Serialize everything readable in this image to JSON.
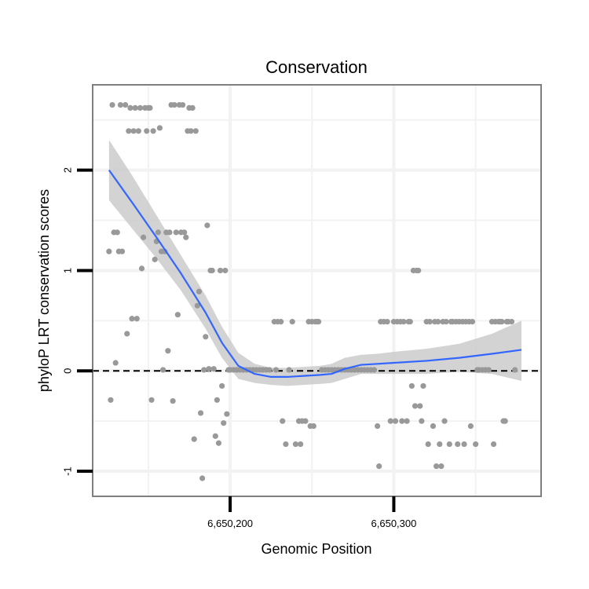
{
  "chart_data": {
    "type": "scatter",
    "title": "Conservation",
    "xlabel": "Genomic Position",
    "ylabel": "phyloP LRT conservation scores",
    "xlim": [
      6650116,
      6650390
    ],
    "ylim": [
      -1.25,
      2.85
    ],
    "x_ticks": [
      6650200,
      6650300
    ],
    "x_tick_labels": [
      "6,650,200",
      "6,650,300"
    ],
    "y_ticks": [
      -1,
      0,
      1,
      2
    ],
    "y_tick_labels": [
      "-1",
      "0",
      "1",
      "2"
    ],
    "x_minor_grid": [
      6650150,
      6650250,
      6650350
    ],
    "y_minor_grid": [
      -0.5,
      0.5,
      1.5,
      2.5
    ],
    "reference_line": {
      "y": 0,
      "style": "dashed"
    },
    "colors": {
      "points": "#999999",
      "smooth": "#3366ff",
      "ribbon": "#c8c8c8",
      "panel_border": "#7f7f7f",
      "grid": "#f2f2f2"
    },
    "points": [
      [
        6650126,
        1.19
      ],
      [
        6650127,
        -0.29
      ],
      [
        6650128,
        2.65
      ],
      [
        6650129,
        1.38
      ],
      [
        6650130,
        0.08
      ],
      [
        6650131,
        1.38
      ],
      [
        6650132,
        1.19
      ],
      [
        6650133,
        2.65
      ],
      [
        6650134,
        1.19
      ],
      [
        6650136,
        2.65
      ],
      [
        6650137,
        0.37
      ],
      [
        6650138,
        2.39
      ],
      [
        6650139,
        2.62
      ],
      [
        6650140,
        0.52
      ],
      [
        6650141,
        2.39
      ],
      [
        6650142,
        2.62
      ],
      [
        6650143,
        0.52
      ],
      [
        6650144,
        2.39
      ],
      [
        6650145,
        2.62
      ],
      [
        6650146,
        1.02
      ],
      [
        6650147,
        1.33
      ],
      [
        6650148,
        2.62
      ],
      [
        6650149,
        2.39
      ],
      [
        6650150,
        2.62
      ],
      [
        6650151,
        2.62
      ],
      [
        6650152,
        -0.29
      ],
      [
        6650153,
        2.39
      ],
      [
        6650154,
        1.11
      ],
      [
        6650155,
        1.29
      ],
      [
        6650156,
        1.38
      ],
      [
        6650157,
        2.42
      ],
      [
        6650158,
        1.19
      ],
      [
        6650159,
        0.01
      ],
      [
        6650160,
        1.19
      ],
      [
        6650161,
        1.38
      ],
      [
        6650162,
        0.2
      ],
      [
        6650163,
        1.38
      ],
      [
        6650164,
        2.65
      ],
      [
        6650165,
        -0.3
      ],
      [
        6650166,
        2.65
      ],
      [
        6650167,
        1.38
      ],
      [
        6650168,
        0.56
      ],
      [
        6650169,
        2.65
      ],
      [
        6650170,
        1.38
      ],
      [
        6650171,
        2.65
      ],
      [
        6650172,
        1.38
      ],
      [
        6650173,
        1.33
      ],
      [
        6650174,
        2.39
      ],
      [
        6650175,
        2.62
      ],
      [
        6650176,
        2.39
      ],
      [
        6650177,
        2.62
      ],
      [
        6650178,
        -0.68
      ],
      [
        6650179,
        2.39
      ],
      [
        6650180,
        0.65
      ],
      [
        6650181,
        0.79
      ],
      [
        6650182,
        -0.42
      ],
      [
        6650183,
        -1.07
      ],
      [
        6650184,
        0.01
      ],
      [
        6650185,
        0.34
      ],
      [
        6650186,
        1.45
      ],
      [
        6650187,
        0.02
      ],
      [
        6650188,
        1.0
      ],
      [
        6650189,
        1.0
      ],
      [
        6650190,
        0.02
      ],
      [
        6650191,
        -0.65
      ],
      [
        6650192,
        -0.29
      ],
      [
        6650193,
        -0.72
      ],
      [
        6650194,
        1.0
      ],
      [
        6650195,
        -0.15
      ],
      [
        6650196,
        -0.52
      ],
      [
        6650197,
        1.0
      ],
      [
        6650198,
        -0.43
      ],
      [
        6650199,
        0.01
      ],
      [
        6650200,
        0.01
      ],
      [
        6650202,
        0.01
      ],
      [
        6650204,
        0.01
      ],
      [
        6650206,
        0.01
      ],
      [
        6650208,
        0.01
      ],
      [
        6650210,
        0.01
      ],
      [
        6650212,
        0.01
      ],
      [
        6650214,
        0.01
      ],
      [
        6650216,
        0.01
      ],
      [
        6650218,
        0.01
      ],
      [
        6650220,
        0.01
      ],
      [
        6650222,
        0.01
      ],
      [
        6650224,
        0.01
      ],
      [
        6650227,
        0.49
      ],
      [
        6650228,
        0.01
      ],
      [
        6650229,
        0.49
      ],
      [
        6650231,
        0.49
      ],
      [
        6650232,
        -0.5
      ],
      [
        6650234,
        -0.73
      ],
      [
        6650236,
        0.01
      ],
      [
        6650238,
        0.49
      ],
      [
        6650240,
        -0.73
      ],
      [
        6650242,
        -0.5
      ],
      [
        6650243,
        -0.73
      ],
      [
        6650244,
        -0.5
      ],
      [
        6650246,
        -0.5
      ],
      [
        6650248,
        0.49
      ],
      [
        6650249,
        -0.55
      ],
      [
        6650250,
        0.49
      ],
      [
        6650251,
        -0.55
      ],
      [
        6650252,
        0.49
      ],
      [
        6650253,
        0.49
      ],
      [
        6650254,
        0.49
      ],
      [
        6650256,
        0.01
      ],
      [
        6650258,
        0.01
      ],
      [
        6650260,
        0.01
      ],
      [
        6650262,
        0.01
      ],
      [
        6650264,
        0.01
      ],
      [
        6650266,
        0.01
      ],
      [
        6650268,
        0.01
      ],
      [
        6650270,
        0.01
      ],
      [
        6650272,
        0.01
      ],
      [
        6650274,
        0.01
      ],
      [
        6650276,
        0.01
      ],
      [
        6650278,
        0.01
      ],
      [
        6650280,
        0.01
      ],
      [
        6650282,
        0.01
      ],
      [
        6650284,
        0.01
      ],
      [
        6650286,
        0.01
      ],
      [
        6650288,
        0.01
      ],
      [
        6650290,
        -0.55
      ],
      [
        6650291,
        -0.95
      ],
      [
        6650292,
        0.49
      ],
      [
        6650294,
        0.49
      ],
      [
        6650296,
        0.49
      ],
      [
        6650298,
        -0.5
      ],
      [
        6650300,
        0.49
      ],
      [
        6650301,
        -0.5
      ],
      [
        6650302,
        0.49
      ],
      [
        6650304,
        0.49
      ],
      [
        6650305,
        -0.5
      ],
      [
        6650306,
        0.49
      ],
      [
        6650308,
        -0.5
      ],
      [
        6650309,
        0.49
      ],
      [
        6650310,
        0.49
      ],
      [
        6650311,
        -0.15
      ],
      [
        6650312,
        1.0
      ],
      [
        6650313,
        -0.35
      ],
      [
        6650314,
        1.0
      ],
      [
        6650315,
        1.0
      ],
      [
        6650316,
        -0.35
      ],
      [
        6650317,
        -0.5
      ],
      [
        6650318,
        -0.15
      ],
      [
        6650320,
        0.49
      ],
      [
        6650321,
        -0.73
      ],
      [
        6650322,
        0.49
      ],
      [
        6650324,
        -0.55
      ],
      [
        6650325,
        0.49
      ],
      [
        6650326,
        -0.95
      ],
      [
        6650327,
        0.49
      ],
      [
        6650328,
        -0.73
      ],
      [
        6650329,
        -0.95
      ],
      [
        6650330,
        0.49
      ],
      [
        6650331,
        -0.5
      ],
      [
        6650332,
        0.49
      ],
      [
        6650334,
        -0.73
      ],
      [
        6650335,
        0.49
      ],
      [
        6650336,
        0.49
      ],
      [
        6650338,
        0.49
      ],
      [
        6650339,
        -0.73
      ],
      [
        6650340,
        0.49
      ],
      [
        6650342,
        0.49
      ],
      [
        6650343,
        -0.73
      ],
      [
        6650344,
        0.49
      ],
      [
        6650346,
        0.49
      ],
      [
        6650347,
        -0.55
      ],
      [
        6650348,
        0.49
      ],
      [
        6650350,
        -0.73
      ],
      [
        6650351,
        0.01
      ],
      [
        6650352,
        0.01
      ],
      [
        6650354,
        0.01
      ],
      [
        6650356,
        0.01
      ],
      [
        6650358,
        0.01
      ],
      [
        6650360,
        0.49
      ],
      [
        6650361,
        -0.73
      ],
      [
        6650362,
        0.49
      ],
      [
        6650364,
        0.49
      ],
      [
        6650365,
        0.49
      ],
      [
        6650366,
        0.49
      ],
      [
        6650367,
        -0.5
      ],
      [
        6650368,
        -0.5
      ],
      [
        6650369,
        0.49
      ],
      [
        6650370,
        0.49
      ],
      [
        6650372,
        0.49
      ],
      [
        6650374,
        0.01
      ]
    ],
    "smooth": [
      [
        6650126,
        2.0
      ],
      [
        6650140,
        1.68
      ],
      [
        6650155,
        1.33
      ],
      [
        6650170,
        0.97
      ],
      [
        6650185,
        0.58
      ],
      [
        6650195,
        0.28
      ],
      [
        6650205,
        0.05
      ],
      [
        6650215,
        -0.03
      ],
      [
        6650225,
        -0.06
      ],
      [
        6650235,
        -0.06
      ],
      [
        6650245,
        -0.05
      ],
      [
        6650255,
        -0.04
      ],
      [
        6650262,
        -0.03
      ],
      [
        6650270,
        0.02
      ],
      [
        6650280,
        0.06
      ],
      [
        6650290,
        0.07
      ],
      [
        6650300,
        0.08
      ],
      [
        6650320,
        0.1
      ],
      [
        6650340,
        0.13
      ],
      [
        6650360,
        0.17
      ],
      [
        6650378,
        0.21
      ]
    ],
    "ribbon_upper": [
      [
        6650126,
        2.3
      ],
      [
        6650140,
        1.95
      ],
      [
        6650155,
        1.55
      ],
      [
        6650170,
        1.15
      ],
      [
        6650185,
        0.75
      ],
      [
        6650195,
        0.44
      ],
      [
        6650205,
        0.18
      ],
      [
        6650215,
        0.07
      ],
      [
        6650225,
        0.03
      ],
      [
        6650235,
        0.03
      ],
      [
        6650245,
        0.04
      ],
      [
        6650255,
        0.05
      ],
      [
        6650262,
        0.07
      ],
      [
        6650270,
        0.13
      ],
      [
        6650280,
        0.16
      ],
      [
        6650290,
        0.17
      ],
      [
        6650300,
        0.19
      ],
      [
        6650320,
        0.22
      ],
      [
        6650340,
        0.27
      ],
      [
        6650360,
        0.37
      ],
      [
        6650378,
        0.5
      ]
    ],
    "ribbon_lower": [
      [
        6650126,
        1.7
      ],
      [
        6650140,
        1.42
      ],
      [
        6650155,
        1.12
      ],
      [
        6650170,
        0.8
      ],
      [
        6650185,
        0.42
      ],
      [
        6650195,
        0.13
      ],
      [
        6650205,
        -0.08
      ],
      [
        6650215,
        -0.12
      ],
      [
        6650225,
        -0.14
      ],
      [
        6650235,
        -0.15
      ],
      [
        6650245,
        -0.14
      ],
      [
        6650255,
        -0.13
      ],
      [
        6650262,
        -0.12
      ],
      [
        6650270,
        -0.08
      ],
      [
        6650280,
        -0.03
      ],
      [
        6650290,
        -0.03
      ],
      [
        6650300,
        -0.03
      ],
      [
        6650320,
        -0.03
      ],
      [
        6650340,
        -0.01
      ],
      [
        6650360,
        -0.03
      ],
      [
        6650378,
        -0.1
      ]
    ]
  }
}
